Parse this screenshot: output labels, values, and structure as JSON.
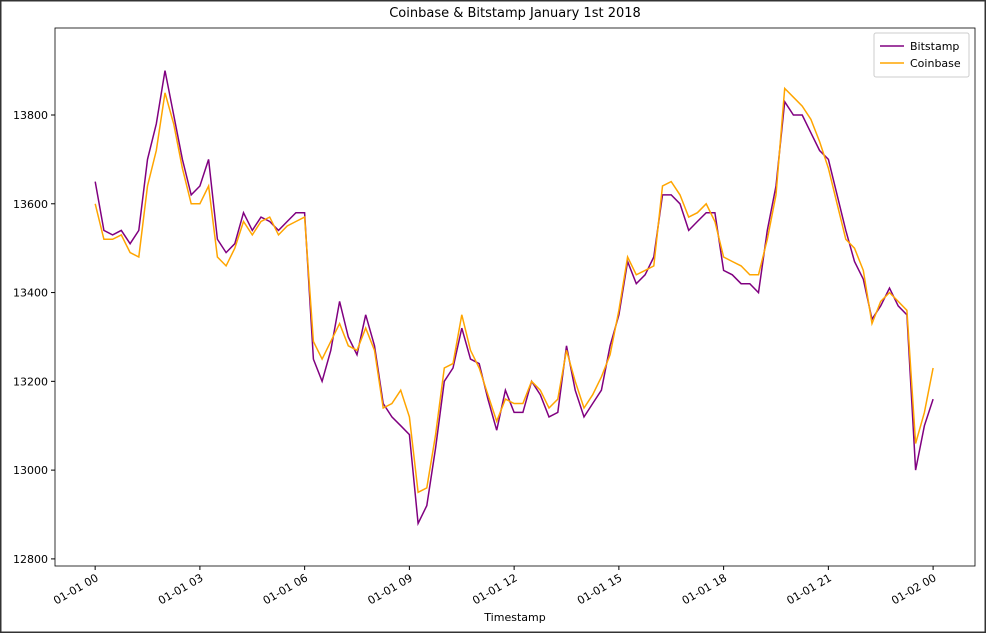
{
  "chart_data": {
    "type": "line",
    "title": "Coinbase & Bitstamp January 1st 2018",
    "xlabel": "Timestamp",
    "x": [
      0,
      0.25,
      0.5,
      0.75,
      1,
      1.25,
      1.5,
      1.75,
      2,
      2.25,
      2.5,
      2.75,
      3,
      3.25,
      3.5,
      3.75,
      4,
      4.25,
      4.5,
      4.75,
      5,
      5.25,
      5.5,
      5.75,
      6,
      6.25,
      6.5,
      6.75,
      7,
      7.25,
      7.5,
      7.75,
      8,
      8.25,
      8.5,
      8.75,
      9,
      9.25,
      9.5,
      9.75,
      10,
      10.25,
      10.5,
      10.75,
      11,
      11.25,
      11.5,
      11.75,
      12,
      12.25,
      12.5,
      12.75,
      13,
      13.25,
      13.5,
      13.75,
      14,
      14.25,
      14.5,
      14.75,
      15,
      15.25,
      15.5,
      15.75,
      16,
      16.25,
      16.5,
      16.75,
      17,
      17.25,
      17.5,
      17.75,
      18,
      18.25,
      18.5,
      18.75,
      19,
      19.25,
      19.5,
      19.75,
      20,
      20.25,
      20.5,
      20.75,
      21,
      21.25,
      21.5,
      21.75,
      22,
      22.25,
      22.5,
      22.75,
      23,
      23.25,
      23.5,
      23.75,
      24
    ],
    "series": [
      {
        "name": "Bitstamp",
        "color": "#800080",
        "values": [
          13650,
          13540,
          13530,
          13540,
          13510,
          13540,
          13700,
          13780,
          13900,
          13800,
          13700,
          13620,
          13640,
          13700,
          13520,
          13490,
          13510,
          13580,
          13540,
          13570,
          13560,
          13540,
          13560,
          13580,
          13580,
          13250,
          13200,
          13270,
          13380,
          13300,
          13260,
          13350,
          13280,
          13150,
          13120,
          13100,
          13080,
          12880,
          12920,
          13050,
          13200,
          13230,
          13320,
          13250,
          13240,
          13160,
          13090,
          13180,
          13130,
          13130,
          13200,
          13170,
          13120,
          13130,
          13280,
          13180,
          13120,
          13150,
          13180,
          13280,
          13350,
          13470,
          13420,
          13440,
          13480,
          13620,
          13620,
          13600,
          13540,
          13560,
          13580,
          13580,
          13450,
          13440,
          13420,
          13420,
          13400,
          13540,
          13640,
          13830,
          13800,
          13800,
          13760,
          13720,
          13700,
          13620,
          13540,
          13470,
          13430,
          13340,
          13370,
          13410,
          13370,
          13350,
          13000,
          13100,
          13160
        ]
      },
      {
        "name": "Coinbase",
        "color": "#ffa500",
        "values": [
          13600,
          13520,
          13520,
          13530,
          13490,
          13480,
          13640,
          13720,
          13850,
          13780,
          13680,
          13600,
          13600,
          13640,
          13480,
          13460,
          13500,
          13560,
          13530,
          13560,
          13570,
          13530,
          13550,
          13560,
          13570,
          13290,
          13250,
          13290,
          13330,
          13280,
          13270,
          13320,
          13270,
          13140,
          13150,
          13180,
          13120,
          12950,
          12960,
          13080,
          13230,
          13240,
          13350,
          13270,
          13230,
          13170,
          13110,
          13160,
          13150,
          13150,
          13200,
          13180,
          13140,
          13160,
          13270,
          13200,
          13140,
          13170,
          13210,
          13260,
          13360,
          13480,
          13440,
          13450,
          13460,
          13640,
          13650,
          13620,
          13570,
          13580,
          13600,
          13560,
          13480,
          13470,
          13460,
          13440,
          13440,
          13520,
          13620,
          13860,
          13840,
          13820,
          13790,
          13740,
          13680,
          13600,
          13520,
          13500,
          13450,
          13330,
          13380,
          13400,
          13380,
          13360,
          13060,
          13130,
          13230
        ]
      }
    ],
    "xlim": [
      -1.15,
      25.2
    ],
    "xticks": [
      {
        "value": 0,
        "label": "01-01 00"
      },
      {
        "value": 3,
        "label": "01-01 03"
      },
      {
        "value": 6,
        "label": "01-01 06"
      },
      {
        "value": 9,
        "label": "01-01 09"
      },
      {
        "value": 12,
        "label": "01-01 12"
      },
      {
        "value": 15,
        "label": "01-01 15"
      },
      {
        "value": 18,
        "label": "01-01 18"
      },
      {
        "value": 21,
        "label": "01-01 21"
      },
      {
        "value": 24,
        "label": "01-02 00"
      }
    ],
    "ylim": [
      12784,
      13996
    ],
    "yticks": [
      12800,
      13000,
      13200,
      13400,
      13600,
      13800
    ],
    "legend": "upper right"
  }
}
